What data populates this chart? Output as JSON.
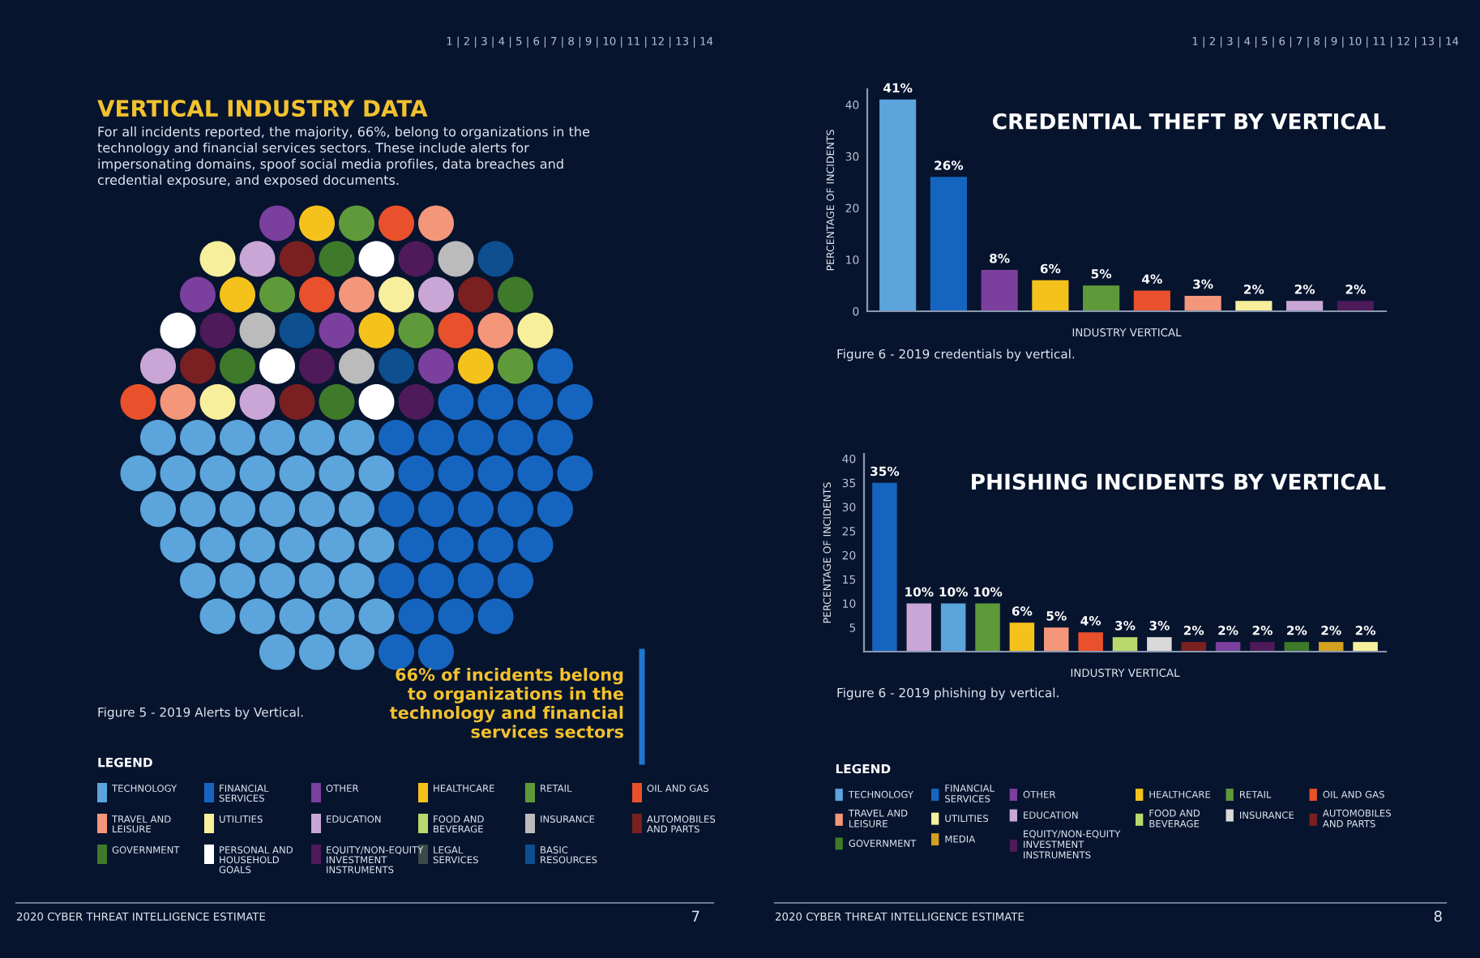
{
  "chart_data": [
    {
      "type": "other",
      "title": "VERTICAL INDUSTRY DATA",
      "subtitle": "For all incidents reported, the majority, 66%, belong to organizations in the technology and financial services sectors. These include alerts for impersonating domains, spoof social media profiles, data breaches and credential exposure, and exposed documents.",
      "annotations": [
        "66% of incidents belong to organizations in the technology and financial services sectors",
        "Figure 5 - 2019 Alerts by Vertical.",
        "LEGEND",
        "TECHNOLOGY",
        "FINANCIAL SERVICES",
        "OTHER",
        "HEALTHCARE",
        "RETAIL",
        "OIL AND GAS",
        "TRAVEL AND LEISURE",
        "UTILITIES",
        "EDUCATION",
        "FOOD AND BEVERAGE",
        "INSURANCE",
        "AUTOMOBILES AND PARTS",
        "GOVERNMENT",
        "PERSONAL AND HOUSEHOLD GOALS",
        "EQUITY/NON-EQUITY INVESTMENT INSTRUMENTS",
        "LEGAL SERVICES",
        "BASIC RESOURCES",
        "2020 CYBER THREAT INTELLIGENCE ESTIMATE",
        "7",
        "1 | 2 | 3 | 4 | 5 | 6 | 7 | 8 | 9 | 10 | 11 | 12 | 13 | 14"
      ]
    },
    {
      "type": "bar",
      "title": "CREDENTIAL THEFT BY VERTICAL",
      "xlabel": "INDUSTRY VERTICAL",
      "ylabel": "PERCENTAGE OF INCIDENTS",
      "categories": [
        null,
        null,
        null,
        null,
        null,
        null,
        null,
        null,
        null,
        null
      ],
      "values": [
        41,
        26,
        8,
        6,
        5,
        4,
        3,
        2,
        2,
        2
      ],
      "colors": [
        "#5ba4dc",
        "#1565c0",
        "#7b3f9e",
        "#f5c21b",
        "#5f9a3a",
        "#e8512b",
        "#f4967a",
        "#f7ef9c",
        "#c9a6d6",
        "#4e1a5a"
      ],
      "value_labels": [
        "41%",
        "26%",
        "8%",
        "6%",
        "5%",
        "4%",
        "3%",
        "2%",
        "2%",
        "2%"
      ],
      "ylim": [
        0,
        43
      ],
      "yticks": [
        0,
        10,
        20,
        30,
        40
      ],
      "grid": false,
      "annotations": [
        "Figure 6 - 2019 credentials by vertical.",
        "1 | 2 | 3 | 4 | 5 | 6 | 7 | 8 | 9 | 10 | 11 | 12 | 13 | 14"
      ]
    },
    {
      "type": "bar",
      "title": "PHISHING INCIDENTS BY VERTICAL",
      "xlabel": "INDUSTRY VERTICAL",
      "ylabel": "PERCENTAGE OF INCIDENTS",
      "categories": [
        null,
        null,
        null,
        null,
        null,
        null,
        null,
        null,
        null,
        null,
        null,
        null,
        null,
        null,
        null
      ],
      "series": [
        {
          "name": "TECHNOLOGY",
          "color": "#5ba4dc",
          "values": [
            null,
            null,
            10,
            null,
            null,
            null,
            null,
            null,
            null,
            null,
            null,
            null,
            null,
            null,
            null
          ],
          "value_labels": [
            null,
            null,
            "10%",
            null,
            null,
            null,
            null,
            null,
            null,
            null,
            null,
            null,
            null,
            null,
            null
          ]
        },
        {
          "name": "FINANCIAL SERVICES",
          "color": "#1565c0",
          "values": [
            35,
            null,
            null,
            null,
            null,
            null,
            null,
            null,
            null,
            null,
            null,
            null,
            null,
            null,
            null
          ],
          "value_labels": [
            "35%",
            null,
            null,
            null,
            null,
            null,
            null,
            null,
            null,
            null,
            null,
            null,
            null,
            null,
            null
          ]
        },
        {
          "name": "OTHER",
          "color": "#7b3f9e",
          "values": [
            null,
            null,
            null,
            null,
            null,
            null,
            null,
            null,
            null,
            null,
            2,
            null,
            null,
            null,
            null
          ],
          "value_labels": [
            null,
            null,
            null,
            null,
            null,
            null,
            null,
            null,
            null,
            null,
            "2%",
            null,
            null,
            null,
            null
          ]
        },
        {
          "name": "HEALTHCARE",
          "color": "#f5c21b",
          "values": [
            null,
            null,
            null,
            null,
            6,
            null,
            null,
            null,
            null,
            null,
            null,
            null,
            null,
            null,
            null
          ],
          "value_labels": [
            null,
            null,
            null,
            null,
            "6%",
            null,
            null,
            null,
            null,
            null,
            null,
            null,
            null,
            null,
            null
          ]
        },
        {
          "name": "RETAIL",
          "color": "#5f9a3a",
          "values": [
            null,
            null,
            null,
            10,
            null,
            null,
            null,
            null,
            null,
            null,
            null,
            null,
            null,
            null,
            null
          ],
          "value_labels": [
            null,
            null,
            null,
            "10%",
            null,
            null,
            null,
            null,
            null,
            null,
            null,
            null,
            null,
            null,
            null
          ]
        },
        {
          "name": "OIL AND GAS",
          "color": "#e8512b",
          "values": [
            null,
            null,
            null,
            null,
            null,
            null,
            4,
            null,
            null,
            null,
            null,
            null,
            null,
            null,
            null
          ],
          "value_labels": [
            null,
            null,
            null,
            null,
            null,
            null,
            "4%",
            null,
            null,
            null,
            null,
            null,
            null,
            null,
            null
          ]
        },
        {
          "name": "TRAVEL AND LEISURE",
          "color": "#f4967a",
          "values": [
            null,
            null,
            null,
            null,
            null,
            5,
            null,
            null,
            null,
            null,
            null,
            null,
            null,
            null,
            null
          ],
          "value_labels": [
            null,
            null,
            null,
            null,
            null,
            "5%",
            null,
            null,
            null,
            null,
            null,
            null,
            null,
            null,
            null
          ]
        },
        {
          "name": "UTILITIES",
          "color": "#f7ef9c",
          "values": [
            null,
            null,
            null,
            null,
            null,
            null,
            null,
            null,
            null,
            null,
            null,
            null,
            null,
            null,
            2
          ],
          "value_labels": [
            null,
            null,
            null,
            null,
            null,
            null,
            null,
            null,
            null,
            null,
            null,
            null,
            null,
            null,
            "2%"
          ]
        },
        {
          "name": "EDUCATION",
          "color": "#c9a6d6",
          "values": [
            null,
            10,
            null,
            null,
            null,
            null,
            null,
            null,
            null,
            null,
            null,
            null,
            null,
            null,
            null
          ],
          "value_labels": [
            null,
            "10%",
            null,
            null,
            null,
            null,
            null,
            null,
            null,
            null,
            null,
            null,
            null,
            null,
            null
          ]
        },
        {
          "name": "FOOD AND BEVERAGE",
          "color": "#b9d86e",
          "values": [
            null,
            null,
            null,
            null,
            null,
            null,
            null,
            3,
            null,
            null,
            null,
            null,
            null,
            null,
            null
          ],
          "value_labels": [
            null,
            null,
            null,
            null,
            null,
            null,
            null,
            "3%",
            null,
            null,
            null,
            null,
            null,
            null,
            null
          ]
        },
        {
          "name": "INSURANCE",
          "color": "#d9d9d9",
          "values": [
            null,
            null,
            null,
            null,
            null,
            null,
            null,
            null,
            3,
            null,
            null,
            null,
            null,
            null,
            null
          ],
          "value_labels": [
            null,
            null,
            null,
            null,
            null,
            null,
            null,
            null,
            "3%",
            null,
            null,
            null,
            null,
            null,
            null
          ]
        },
        {
          "name": "AUTOMOBILES AND PARTS",
          "color": "#7a2020",
          "values": [
            null,
            null,
            null,
            null,
            null,
            null,
            null,
            null,
            null,
            2,
            null,
            null,
            null,
            null,
            null
          ],
          "value_labels": [
            null,
            null,
            null,
            null,
            null,
            null,
            null,
            null,
            null,
            "2%",
            null,
            null,
            null,
            null,
            null
          ]
        },
        {
          "name": "GOVERNMENT",
          "color": "#3e7a2a",
          "values": [
            null,
            null,
            null,
            null,
            null,
            null,
            null,
            null,
            null,
            null,
            null,
            null,
            2,
            null,
            null
          ],
          "value_labels": [
            null,
            null,
            null,
            null,
            null,
            null,
            null,
            null,
            null,
            null,
            null,
            null,
            "2%",
            null,
            null
          ]
        },
        {
          "name": "MEDIA",
          "color": "#d4a020",
          "values": [
            null,
            null,
            null,
            null,
            null,
            null,
            null,
            null,
            null,
            null,
            null,
            null,
            null,
            2,
            null
          ],
          "value_labels": [
            null,
            null,
            null,
            null,
            null,
            null,
            null,
            null,
            null,
            null,
            null,
            null,
            null,
            "2%",
            null
          ]
        },
        {
          "name": "EQUITY/NON-EQUITY INVESTMENT INSTRUMENTS",
          "color": "#4e1a5a",
          "values": [
            null,
            null,
            null,
            null,
            null,
            null,
            null,
            null,
            null,
            null,
            null,
            2,
            null,
            null,
            null
          ],
          "value_labels": [
            null,
            null,
            null,
            null,
            null,
            null,
            null,
            null,
            null,
            null,
            null,
            "2%",
            null,
            null,
            null
          ]
        }
      ],
      "legend": "bottom",
      "legend_title": "LEGEND",
      "ylim": [
        0,
        41
      ],
      "yticks": [
        5,
        10,
        15,
        20,
        25,
        30,
        35,
        40
      ],
      "grid": false,
      "annotations": [
        "Figure 6 - 2019 phishing by vertical.",
        "2020 CYBER THREAT INTELLIGENCE ESTIMATE",
        "8"
      ]
    }
  ]
}
